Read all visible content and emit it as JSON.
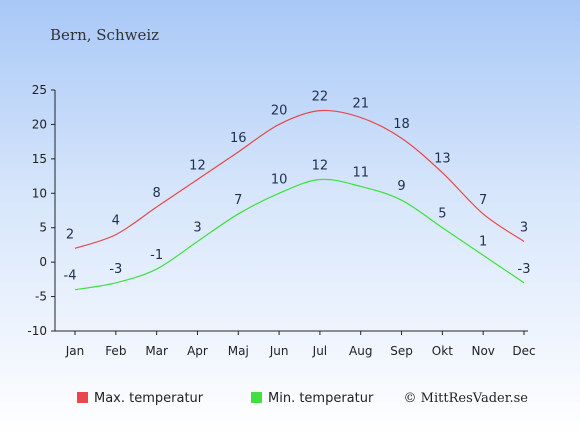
{
  "chart_data": {
    "type": "line",
    "title": "Bern, Schweiz",
    "categories": [
      "Jan",
      "Feb",
      "Mar",
      "Apr",
      "Maj",
      "Jun",
      "Jul",
      "Aug",
      "Sep",
      "Okt",
      "Nov",
      "Dec"
    ],
    "ylim": [
      -10,
      25
    ],
    "yticks": [
      25,
      20,
      15,
      10,
      5,
      0,
      -5,
      -10
    ],
    "grid": false,
    "legend_position": "bottom",
    "series": [
      {
        "name": "Max. temperatur",
        "color": "#e8474b",
        "values": [
          2,
          4,
          8,
          12,
          16,
          20,
          22,
          21,
          18,
          13,
          7,
          3
        ]
      },
      {
        "name": "Min. temperatur",
        "color": "#3fe03f",
        "values": [
          -4,
          -3,
          -1,
          3,
          7,
          10,
          12,
          11,
          9,
          5,
          1,
          -3
        ]
      }
    ]
  },
  "credit": "© MittResVader.se"
}
